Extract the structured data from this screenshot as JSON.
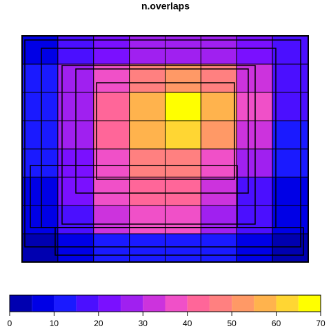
{
  "chart_data": {
    "type": "heatmap",
    "title": "n.overlaps",
    "values": [
      [
        5,
        15,
        20,
        25,
        25,
        25,
        20,
        15
      ],
      [
        10,
        25,
        35,
        45,
        50,
        45,
        30,
        15
      ],
      [
        10,
        25,
        40,
        55,
        65,
        55,
        35,
        15
      ],
      [
        10,
        25,
        40,
        55,
        60,
        50,
        30,
        10
      ],
      [
        10,
        20,
        35,
        45,
        45,
        35,
        25,
        10
      ],
      [
        5,
        20,
        35,
        40,
        40,
        30,
        15,
        5
      ],
      [
        5,
        15,
        30,
        35,
        35,
        25,
        15,
        5
      ],
      [
        0,
        5,
        10,
        10,
        10,
        10,
        5,
        0
      ]
    ],
    "breaks": [
      0,
      5,
      10,
      15,
      20,
      25,
      30,
      35,
      40,
      45,
      50,
      55,
      60,
      65,
      70
    ],
    "colors": [
      "#0000B0",
      "#0000E6",
      "#1A1AFF",
      "#4B0FFF",
      "#7A10FF",
      "#A020F0",
      "#CC33DD",
      "#F050C8",
      "#FF6699",
      "#FF8080",
      "#FF9966",
      "#FFB34D",
      "#FFD633",
      "#FFFF00"
    ],
    "xlim": [
      0,
      70
    ],
    "xticks": [
      0,
      10,
      20,
      30,
      40,
      50,
      60,
      70
    ]
  }
}
